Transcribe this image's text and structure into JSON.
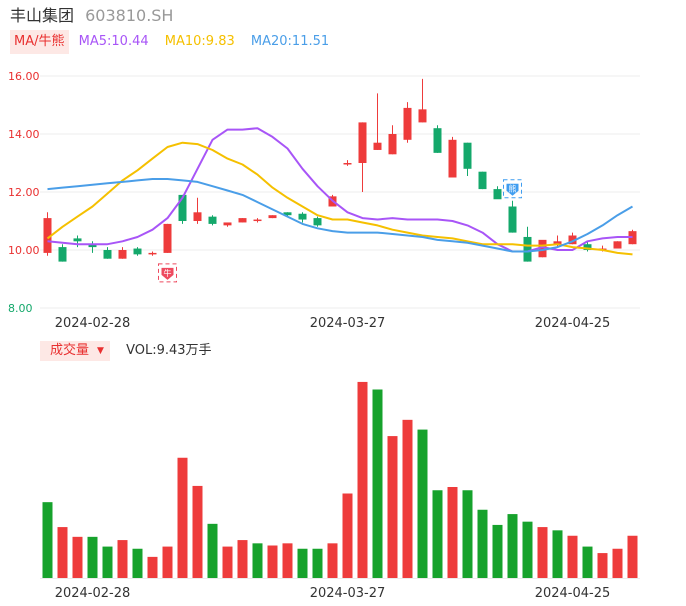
{
  "header": {
    "name": "丰山集团",
    "code": "603810.SH"
  },
  "ma_bar": {
    "tab_label": "MA/牛熊",
    "items": [
      {
        "label": "MA5:10.44",
        "color": "#a855f7"
      },
      {
        "label": "MA10:9.83",
        "color": "#f5c000"
      },
      {
        "label": "MA20:11.51",
        "color": "#4a9ee8"
      }
    ]
  },
  "volume_bar": {
    "tab_label": "成交量",
    "vol_text": "VOL:9.43万手"
  },
  "colors": {
    "up": "#ee3b3b",
    "down": "#14a86b",
    "vol_down": "#16a22c",
    "price_axis": "#e93030",
    "low_axis": "#14a86b"
  },
  "signals": [
    {
      "date_index": 8,
      "type": "bull",
      "label": "牛"
    },
    {
      "date_index": 31,
      "type": "bear",
      "label": "熊"
    }
  ],
  "chart_data": [
    {
      "type": "candlestick",
      "ylim": [
        8,
        16
      ],
      "yticks": [
        "16.00",
        "14.00",
        "12.00",
        "10.00",
        "8.00"
      ],
      "ytick_values": [
        16,
        14,
        12,
        10,
        8
      ],
      "xtick_labels": [
        {
          "index": 3,
          "label": "2024-02-28"
        },
        {
          "index": 20,
          "label": "2024-03-27"
        },
        {
          "index": 35,
          "label": "2024-04-25"
        }
      ],
      "ohlc": [
        [
          9.9,
          11.3,
          9.8,
          11.1
        ],
        [
          10.1,
          10.2,
          9.6,
          9.6
        ],
        [
          10.4,
          10.5,
          10.1,
          10.3
        ],
        [
          10.2,
          10.3,
          9.9,
          10.1
        ],
        [
          10.0,
          10.1,
          9.7,
          9.7
        ],
        [
          9.7,
          10.1,
          9.7,
          10.0
        ],
        [
          10.05,
          10.1,
          9.8,
          9.85
        ],
        [
          9.85,
          9.95,
          9.8,
          9.9
        ],
        [
          9.9,
          10.9,
          9.9,
          10.9
        ],
        [
          11.9,
          11.9,
          10.9,
          11.0
        ],
        [
          11.0,
          11.8,
          10.9,
          11.3
        ],
        [
          11.15,
          11.2,
          10.85,
          10.9
        ],
        [
          10.85,
          10.9,
          10.8,
          10.95
        ],
        [
          10.95,
          11.1,
          10.95,
          11.1
        ],
        [
          11.0,
          11.1,
          10.95,
          11.05
        ],
        [
          11.1,
          11.2,
          11.1,
          11.2
        ],
        [
          11.3,
          11.3,
          11.15,
          11.2
        ],
        [
          11.25,
          11.3,
          10.95,
          11.05
        ],
        [
          11.1,
          11.15,
          10.8,
          10.85
        ],
        [
          11.5,
          11.9,
          11.5,
          11.85
        ],
        [
          13.0,
          13.1,
          12.9,
          13.0
        ],
        [
          13.0,
          14.4,
          12.0,
          14.4
        ],
        [
          13.45,
          15.4,
          13.45,
          13.7
        ],
        [
          13.3,
          14.3,
          13.3,
          14.0
        ],
        [
          13.8,
          15.1,
          13.7,
          14.9
        ],
        [
          14.4,
          15.9,
          14.4,
          14.85
        ],
        [
          14.2,
          14.3,
          13.35,
          13.35
        ],
        [
          12.5,
          13.9,
          12.5,
          13.8
        ],
        [
          13.7,
          13.7,
          12.55,
          12.8
        ],
        [
          12.7,
          12.7,
          12.1,
          12.1
        ],
        [
          12.1,
          12.2,
          11.8,
          11.75
        ],
        [
          11.5,
          11.7,
          10.6,
          10.6
        ],
        [
          10.45,
          10.8,
          9.6,
          9.6
        ],
        [
          9.75,
          10.3,
          9.75,
          10.35
        ],
        [
          10.2,
          10.5,
          10.1,
          10.3
        ],
        [
          10.2,
          10.6,
          10.2,
          10.5
        ],
        [
          10.2,
          10.3,
          9.95,
          10.0
        ],
        [
          10.0,
          10.15,
          9.95,
          10.05
        ],
        [
          10.05,
          10.3,
          10.05,
          10.3
        ],
        [
          10.2,
          10.7,
          10.2,
          10.65
        ]
      ],
      "ma": {
        "MA5": [
          10.3,
          10.25,
          10.2,
          10.2,
          10.2,
          10.3,
          10.45,
          10.7,
          11.1,
          11.8,
          12.8,
          13.8,
          14.15,
          14.15,
          14.2,
          13.9,
          13.5,
          12.8,
          12.2,
          11.7,
          11.3,
          11.1,
          11.05,
          11.1,
          11.05,
          11.05,
          11.05,
          11.0,
          10.85,
          10.6,
          10.2,
          9.95,
          9.95,
          10.1,
          10.0,
          10.0,
          10.3,
          10.4,
          10.45,
          10.45
        ],
        "MA10": [
          10.4,
          10.8,
          11.15,
          11.5,
          11.95,
          12.4,
          12.75,
          13.15,
          13.55,
          13.7,
          13.65,
          13.45,
          13.15,
          12.95,
          12.6,
          12.15,
          11.8,
          11.5,
          11.2,
          11.05,
          11.05,
          10.95,
          10.85,
          10.7,
          10.6,
          10.5,
          10.45,
          10.4,
          10.3,
          10.2,
          10.2,
          10.2,
          10.15,
          10.15,
          10.2,
          10.1,
          10.05,
          10.0,
          9.9,
          9.85
        ],
        "MA20": [
          12.1,
          12.15,
          12.2,
          12.25,
          12.3,
          12.35,
          12.4,
          12.45,
          12.45,
          12.4,
          12.35,
          12.2,
          12.05,
          11.9,
          11.65,
          11.4,
          11.15,
          10.9,
          10.75,
          10.65,
          10.6,
          10.6,
          10.6,
          10.55,
          10.5,
          10.45,
          10.35,
          10.3,
          10.25,
          10.15,
          10.05,
          9.95,
          9.95,
          10.0,
          10.1,
          10.3,
          10.55,
          10.85,
          11.2,
          11.5
        ]
      }
    },
    {
      "type": "bar",
      "series": [
        {
          "values": [
            7.0,
            4.7,
            3.8,
            3.8,
            2.9,
            3.5,
            2.7,
            1.95,
            2.9,
            11.1,
            8.5,
            5.0,
            2.9,
            3.5,
            3.2,
            3.0,
            3.2,
            2.7,
            2.7,
            3.2,
            7.8,
            18.1,
            17.4,
            13.1,
            14.6,
            13.7,
            8.1,
            8.4,
            8.1,
            6.3,
            4.9,
            5.9,
            5.2,
            4.7,
            4.4,
            3.9,
            2.9,
            2.3,
            2.7,
            3.9
          ],
          "colors": [
            "down",
            "up",
            "up",
            "down",
            "down",
            "up",
            "down",
            "up",
            "up",
            "up",
            "up",
            "down",
            "up",
            "up",
            "down",
            "up",
            "up",
            "down",
            "down",
            "up",
            "up",
            "up",
            "down",
            "up",
            "up",
            "down",
            "down",
            "up",
            "down",
            "down",
            "down",
            "down",
            "down",
            "up",
            "down",
            "up",
            "down",
            "up",
            "up",
            "up"
          ]
        }
      ],
      "xtick_labels": [
        {
          "index": 3,
          "label": "2024-02-28"
        },
        {
          "index": 20,
          "label": "2024-03-27"
        },
        {
          "index": 35,
          "label": "2024-04-25"
        }
      ]
    }
  ]
}
